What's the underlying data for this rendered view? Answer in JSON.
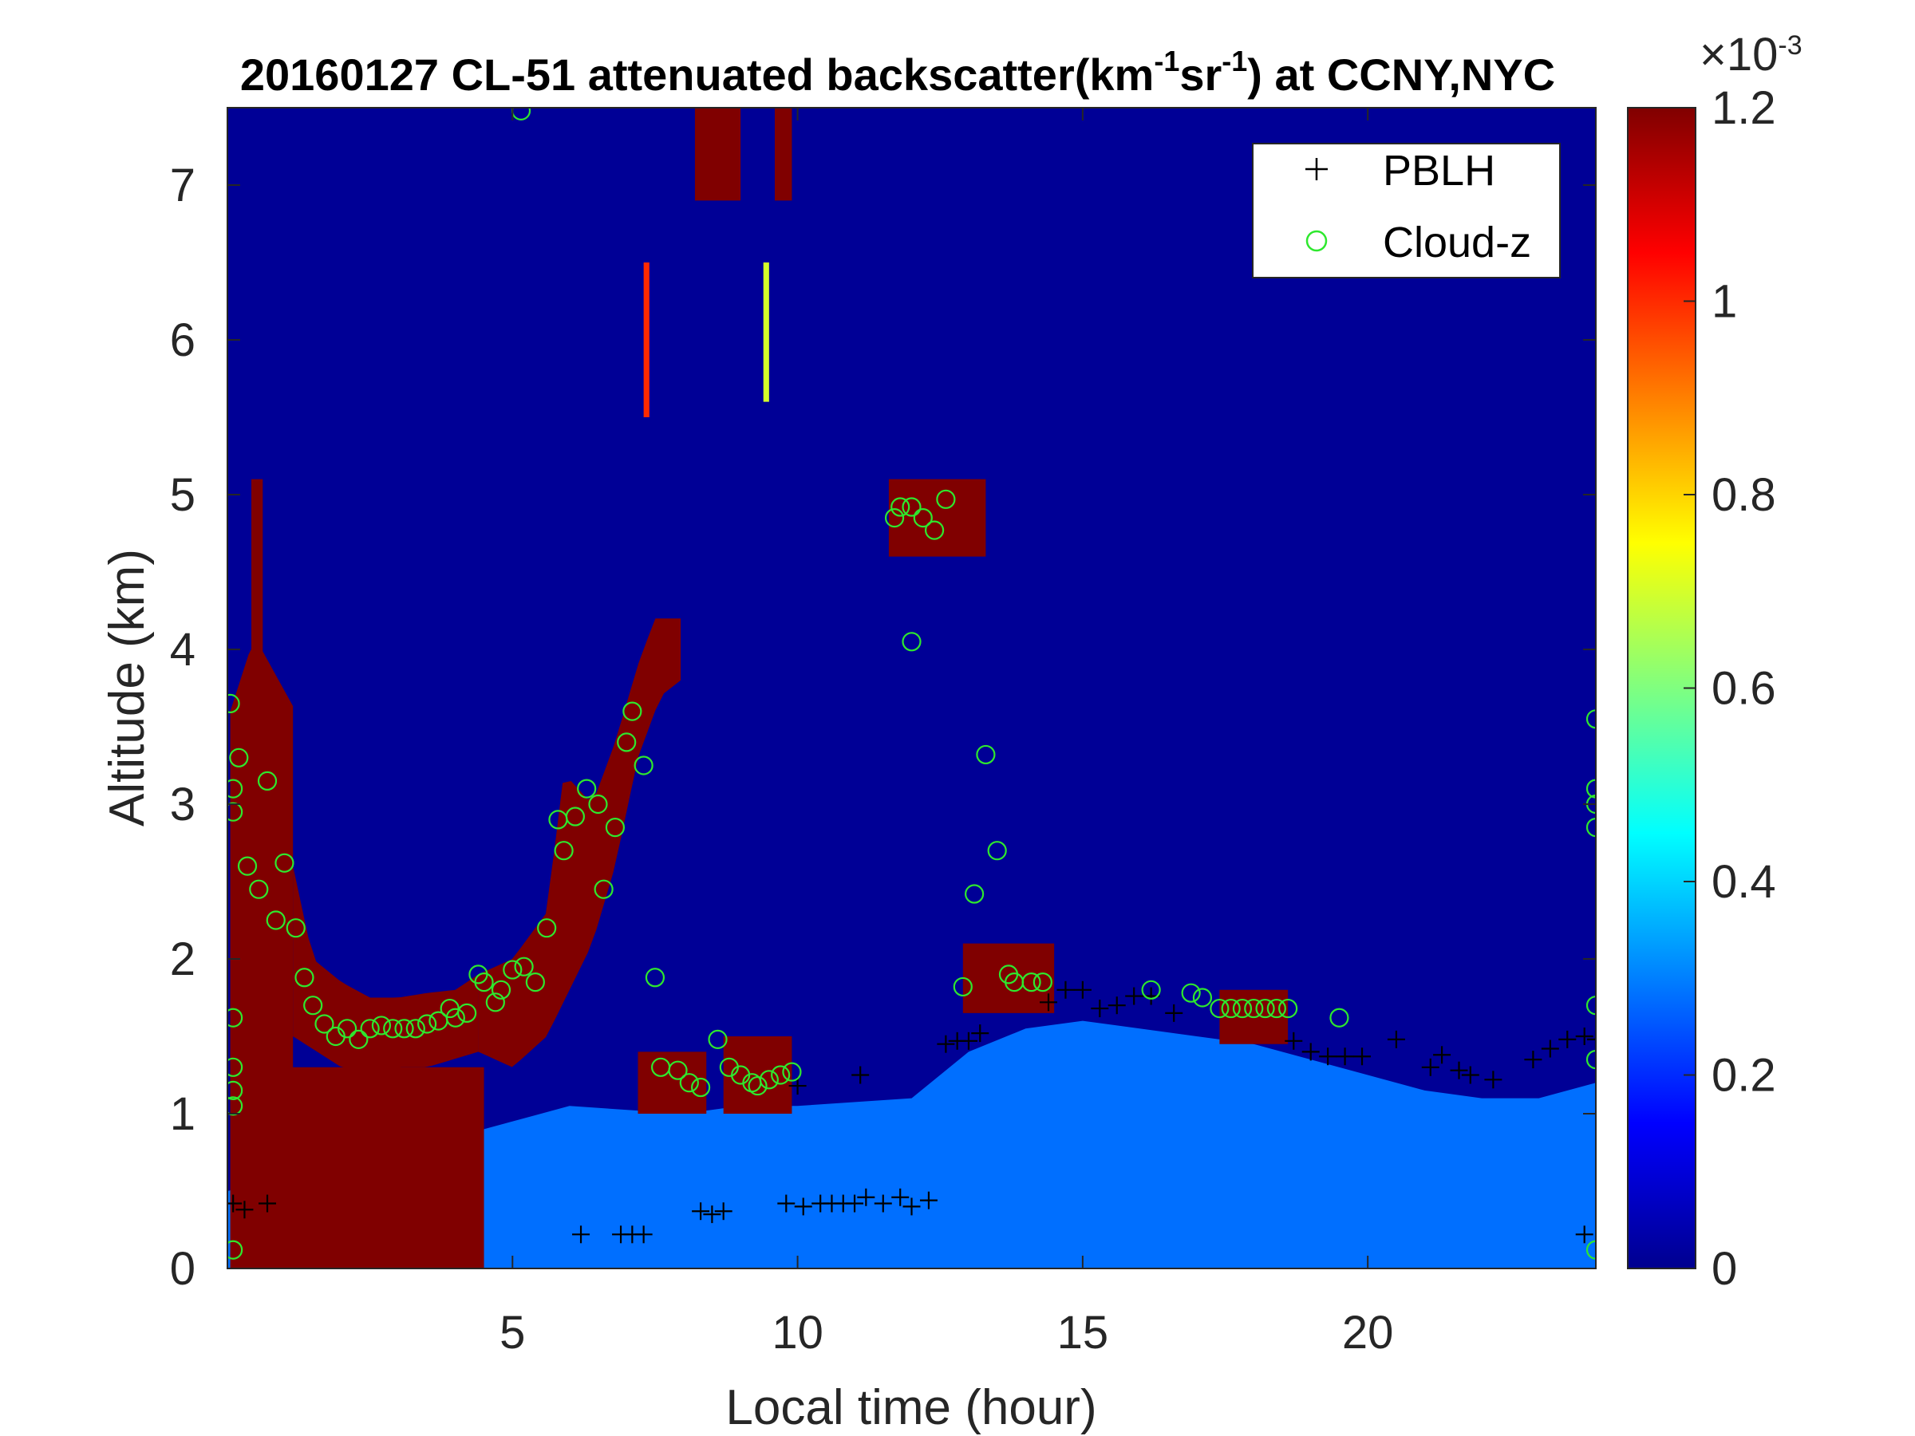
{
  "chart_data": {
    "type": "heatmap",
    "title": {
      "prefix": "20160127  CL-51 attenuated backscatter(km",
      "sup1": "-1",
      "mid": "sr",
      "sup2": "-1",
      "suffix": ") at CCNY,NYC"
    },
    "xlabel": "Local time (hour)",
    "ylabel": "Altitude (km)",
    "xlim": [
      0,
      24
    ],
    "ylim": [
      0,
      7.5
    ],
    "x_ticks": [
      "5",
      "10",
      "15",
      "20"
    ],
    "y_ticks": [
      "0",
      "1",
      "2",
      "3",
      "4",
      "5",
      "6",
      "7"
    ],
    "colorbar": {
      "colormap": "jet",
      "range": [
        0,
        1.2
      ],
      "scale_note": "×10",
      "scale_exp": "-3",
      "ticks": [
        "0",
        "0.2",
        "0.4",
        "0.6",
        "0.8",
        "1",
        "1.2"
      ],
      "tick_values": [
        0,
        0.2,
        0.4,
        0.6,
        0.8,
        1.0,
        1.2
      ]
    },
    "legend": {
      "position": "top-right",
      "entries": [
        {
          "label": "PBLH",
          "marker": "+",
          "color": "#000000"
        },
        {
          "label": "Cloud-z",
          "marker": "o",
          "color": "#2ee82e"
        }
      ]
    },
    "background_value": 0.01,
    "features": [
      {
        "name": "cloud_early_night",
        "value": 1.2,
        "x0": 0.05,
        "x1": 1.15,
        "top": [
          [
            0.05,
            3.6
          ],
          [
            0.4,
            4.0
          ],
          [
            0.6,
            4.0
          ],
          [
            0.9,
            3.8
          ],
          [
            1.2,
            3.6
          ]
        ],
        "bottom": 0
      },
      {
        "name": "tall_column_0.5h",
        "value": 1.2,
        "x0": 0.42,
        "x1": 0.62,
        "top": [
          [
            0.42,
            5.1
          ],
          [
            0.62,
            5.1
          ]
        ],
        "bottom": 3.8
      },
      {
        "name": "cloud_layer_1_4h",
        "value": 1.2,
        "x0": 1.15,
        "x1": 4.4,
        "top": [
          [
            1.15,
            2.6
          ],
          [
            1.5,
            2.0
          ],
          [
            2.0,
            1.85
          ],
          [
            2.5,
            1.75
          ],
          [
            3.0,
            1.75
          ],
          [
            3.5,
            1.78
          ],
          [
            4.0,
            1.8
          ],
          [
            4.4,
            1.9
          ]
        ],
        "bottom": [
          [
            1.15,
            1.5
          ],
          [
            2.0,
            1.3
          ],
          [
            2.6,
            1.25
          ],
          [
            3.0,
            1.3
          ],
          [
            3.5,
            1.3
          ],
          [
            4.4,
            1.4
          ]
        ]
      },
      {
        "name": "precip_columns_1_4h",
        "value": 1.2,
        "x0": 0.9,
        "x1": 4.5,
        "top": 1.3,
        "bottom": 0
      },
      {
        "name": "cloud_rise_4_8h",
        "value": 1.2,
        "x0": 4.4,
        "x1": 7.95,
        "top": [
          [
            4.4,
            1.9
          ],
          [
            5.0,
            2.0
          ],
          [
            5.6,
            2.3
          ],
          [
            5.9,
            3.2
          ],
          [
            6.4,
            3.0
          ],
          [
            6.8,
            3.4
          ],
          [
            7.2,
            3.9
          ],
          [
            7.5,
            4.2
          ],
          [
            7.95,
            4.2
          ]
        ],
        "bottom": [
          [
            4.4,
            1.4
          ],
          [
            5.0,
            1.3
          ],
          [
            5.6,
            1.5
          ],
          [
            6.0,
            1.8
          ],
          [
            6.4,
            2.1
          ],
          [
            6.8,
            2.6
          ],
          [
            7.2,
            3.3
          ],
          [
            7.6,
            3.7
          ],
          [
            7.95,
            3.8
          ]
        ]
      },
      {
        "name": "upper_cloud_8h",
        "value": 1.2,
        "x0": 8.2,
        "x1": 9.0,
        "top": 7.5,
        "bottom": 6.9
      },
      {
        "name": "upper_cloud_9_7h",
        "value": 1.2,
        "x0": 9.6,
        "x1": 9.9,
        "top": 7.5,
        "bottom": 6.9
      },
      {
        "name": "low_cloud_7_2h",
        "value": 1.2,
        "x0": 7.2,
        "x1": 8.4,
        "top": 1.4,
        "bottom": 1.0
      },
      {
        "name": "low_cloud_8_7h",
        "value": 1.2,
        "x0": 8.7,
        "x1": 9.9,
        "top": 1.5,
        "bottom": 1.0
      },
      {
        "name": "mid_cloud_11_5h",
        "value": 1.2,
        "x0": 11.6,
        "x1": 13.3,
        "top": 5.1,
        "bottom": 4.6
      },
      {
        "name": "low_cloud_13h",
        "value": 1.2,
        "x0": 12.9,
        "x1": 14.5,
        "top": 2.1,
        "bottom": 1.65
      },
      {
        "name": "low_cloud_17_5h",
        "value": 1.2,
        "x0": 17.4,
        "x1": 18.6,
        "top": 1.8,
        "bottom": 1.45
      },
      {
        "name": "high_streak_7h",
        "value": 1.0,
        "x0": 7.3,
        "x1": 7.4,
        "top": 6.5,
        "bottom": 5.5
      },
      {
        "name": "high_streak_9_5h",
        "value": 0.7,
        "x0": 9.4,
        "x1": 9.5,
        "top": 6.5,
        "bottom": 5.6
      }
    ],
    "boundary_layer": {
      "value": 0.28,
      "points": [
        [
          0.0,
          0.5
        ],
        [
          4.5,
          0.9
        ],
        [
          6.0,
          1.05
        ],
        [
          8.0,
          1.0
        ],
        [
          9.0,
          1.05
        ],
        [
          10.0,
          1.05
        ],
        [
          12.0,
          1.1
        ],
        [
          13.0,
          1.4
        ],
        [
          14.0,
          1.55
        ],
        [
          15.0,
          1.6
        ],
        [
          16.0,
          1.55
        ],
        [
          17.0,
          1.5
        ],
        [
          18.0,
          1.45
        ],
        [
          19.0,
          1.35
        ],
        [
          20.0,
          1.25
        ],
        [
          21.0,
          1.15
        ],
        [
          22.0,
          1.1
        ],
        [
          23.0,
          1.1
        ],
        [
          24.0,
          1.2
        ]
      ]
    },
    "pblh": {
      "x": [
        0.1,
        0.3,
        0.7,
        6.2,
        6.9,
        7.1,
        7.3,
        8.3,
        8.5,
        8.7,
        9.8,
        10.1,
        10.4,
        10.6,
        10.8,
        11.0,
        11.2,
        11.5,
        11.8,
        12.0,
        12.3,
        10.0,
        11.1,
        12.6,
        12.8,
        13.0,
        13.2,
        14.4,
        14.7,
        15.0,
        15.3,
        15.6,
        15.9,
        16.2,
        16.6,
        18.7,
        19.0,
        19.3,
        19.6,
        19.9,
        20.5,
        21.1,
        21.3,
        21.6,
        21.8,
        22.2,
        22.9,
        23.2,
        23.5,
        23.8,
        24.0,
        23.8
      ],
      "y": [
        0.42,
        0.38,
        0.42,
        0.22,
        0.22,
        0.22,
        0.22,
        0.37,
        0.35,
        0.37,
        0.42,
        0.4,
        0.42,
        0.42,
        0.42,
        0.42,
        0.46,
        0.42,
        0.46,
        0.4,
        0.44,
        1.18,
        1.25,
        1.45,
        1.47,
        1.47,
        1.52,
        1.72,
        1.8,
        1.8,
        1.68,
        1.7,
        1.76,
        1.76,
        1.65,
        1.47,
        1.4,
        1.37,
        1.37,
        1.37,
        1.48,
        1.3,
        1.38,
        1.28,
        1.25,
        1.22,
        1.35,
        1.42,
        1.48,
        1.5,
        1.48,
        0.22
      ]
    },
    "cloud_z": {
      "x": [
        0.05,
        0.2,
        0.35,
        0.55,
        0.7,
        0.85,
        1.0,
        1.2,
        1.35,
        1.5,
        1.7,
        1.9,
        2.1,
        2.3,
        2.5,
        2.7,
        2.9,
        3.1,
        3.3,
        3.5,
        3.7,
        3.9,
        4.0,
        4.2,
        4.4,
        4.5,
        4.7,
        4.8,
        5.0,
        5.2,
        5.4,
        5.6,
        5.8,
        5.9,
        6.1,
        6.3,
        6.5,
        6.6,
        6.8,
        7.0,
        7.1,
        7.3,
        7.5,
        7.6,
        7.9,
        8.1,
        8.3,
        8.6,
        8.8,
        9.0,
        9.2,
        9.3,
        9.5,
        9.7,
        9.9,
        5.15,
        12.0,
        11.7,
        11.8,
        12.0,
        12.2,
        12.4,
        12.6,
        12.9,
        13.1,
        13.3,
        13.5,
        13.7,
        13.8,
        14.1,
        14.3,
        16.2,
        16.9,
        17.1,
        17.4,
        17.6,
        17.8,
        18.0,
        18.2,
        18.4,
        18.6,
        19.5,
        0.1,
        0.1,
        0.1,
        0.1,
        0.1,
        0.1,
        0.1,
        24.0,
        24.0,
        24.0,
        24.0,
        24.0,
        24.0,
        24.0
      ],
      "y": [
        3.65,
        3.3,
        2.6,
        2.45,
        3.15,
        2.25,
        2.62,
        2.2,
        1.88,
        1.7,
        1.58,
        1.5,
        1.55,
        1.48,
        1.55,
        1.57,
        1.55,
        1.55,
        1.55,
        1.58,
        1.6,
        1.68,
        1.62,
        1.65,
        1.9,
        1.85,
        1.72,
        1.8,
        1.93,
        1.95,
        1.85,
        2.2,
        2.9,
        2.7,
        2.92,
        3.1,
        3.0,
        2.45,
        2.85,
        3.4,
        3.6,
        3.25,
        1.88,
        1.3,
        1.28,
        1.2,
        1.17,
        1.48,
        1.3,
        1.25,
        1.2,
        1.18,
        1.22,
        1.25,
        1.27,
        7.48,
        4.05,
        4.85,
        4.92,
        4.92,
        4.85,
        4.77,
        4.97,
        1.82,
        2.42,
        3.32,
        2.7,
        1.9,
        1.85,
        1.85,
        1.85,
        1.8,
        1.78,
        1.75,
        1.68,
        1.68,
        1.68,
        1.68,
        1.68,
        1.68,
        1.68,
        1.62,
        3.1,
        2.95,
        1.62,
        1.3,
        1.15,
        1.05,
        0.12,
        3.55,
        3.1,
        3.0,
        2.85,
        1.7,
        1.35,
        0.12
      ]
    }
  }
}
